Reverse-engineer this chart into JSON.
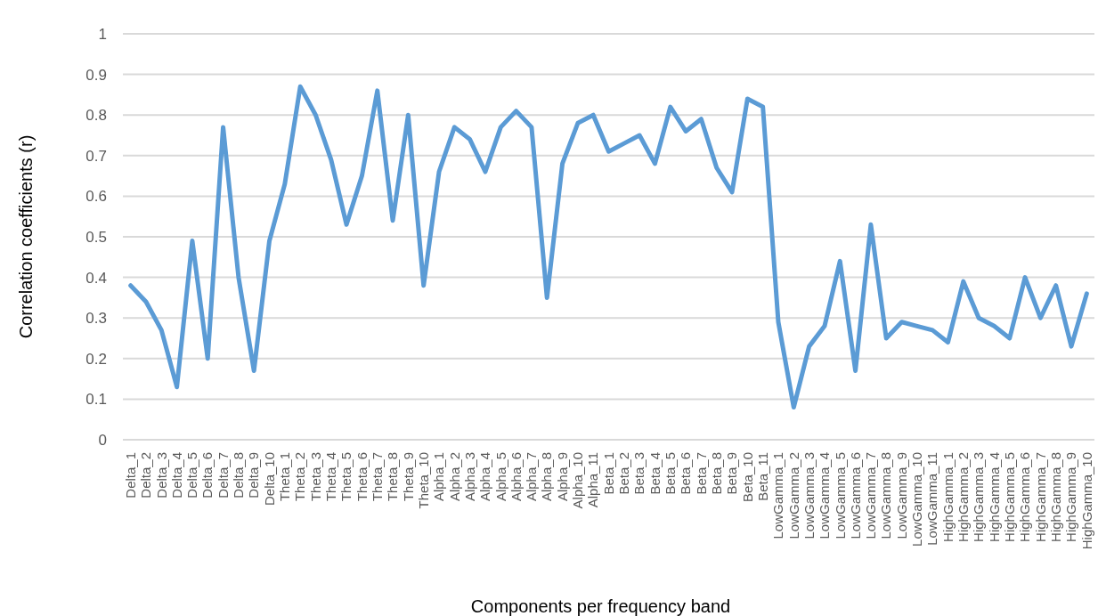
{
  "chart_data": {
    "type": "line",
    "xlabel": "Components per frequency band",
    "ylabel": "Correlation coefficients (r)",
    "categories": [
      "Delta_1",
      "Delta_2",
      "Delta_3",
      "Delta_4",
      "Delta_5",
      "Delta_6",
      "Delta_7",
      "Delta_8",
      "Delta_9",
      "Delta_10",
      "Theta_1",
      "Theta_2",
      "Theta_3",
      "Theta_4",
      "Theta_5",
      "Theta_6",
      "Theta_7",
      "Theta_8",
      "Theta_9",
      "Theta_10",
      "Alpha_1",
      "Alpha_2",
      "Alpha_3",
      "Alpha_4",
      "Alpha_5",
      "Alpha_6",
      "Alpha_7",
      "Alpha_8",
      "Alpha_9",
      "Alpha_10",
      "Alpha_11",
      "Beta_1",
      "Beta_2",
      "Beta_3",
      "Beta_4",
      "Beta_5",
      "Beta_6",
      "Beta_7",
      "Beta_8",
      "Beta_9",
      "Beta_10",
      "Beta_11",
      "LowGamma_1",
      "LowGamma_2",
      "LowGamma_3",
      "LowGamma_4",
      "LowGamma_5",
      "LowGamma_6",
      "LowGamma_7",
      "LowGamma_8",
      "LowGamma_9",
      "LowGamma_10",
      "LowGamma_11",
      "HighGamma_1",
      "HighGamma_2",
      "HighGamma_3",
      "HighGamma_4",
      "HighGamma_5",
      "HighGamma_6",
      "HighGamma_7",
      "HighGamma_8",
      "HighGamma_9",
      "HighGamma_10"
    ],
    "series": [
      {
        "color": "#5b9bd5",
        "values": [
          0.38,
          0.34,
          0.27,
          0.13,
          0.49,
          0.2,
          0.77,
          0.4,
          0.17,
          0.49,
          0.63,
          0.87,
          0.8,
          0.69,
          0.53,
          0.65,
          0.86,
          0.54,
          0.8,
          0.38,
          0.66,
          0.77,
          0.74,
          0.66,
          0.77,
          0.81,
          0.77,
          0.35,
          0.68,
          0.78,
          0.8,
          0.71,
          0.73,
          0.75,
          0.68,
          0.82,
          0.76,
          0.79,
          0.67,
          0.61,
          0.84,
          0.82,
          0.29,
          0.08,
          0.23,
          0.28,
          0.44,
          0.17,
          0.53,
          0.25,
          0.29,
          0.28,
          0.27,
          0.24,
          0.39,
          0.3,
          0.28,
          0.25,
          0.4,
          0.3,
          0.38,
          0.23,
          0.36
        ]
      }
    ],
    "ylim": [
      0,
      1
    ],
    "yticks": [
      0,
      0.1,
      0.2,
      0.3,
      0.4,
      0.5,
      0.6,
      0.7,
      0.8,
      0.9,
      1
    ],
    "grid": "y",
    "marker": "none",
    "line_style": "solid"
  }
}
